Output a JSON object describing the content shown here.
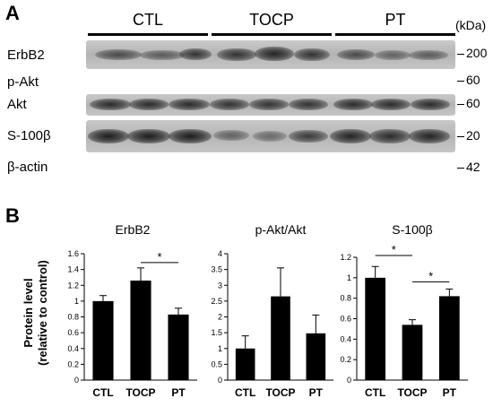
{
  "panels": {
    "a_label": "A",
    "b_label": "B"
  },
  "blot": {
    "groups": [
      "CTL",
      "TOCP",
      "PT"
    ],
    "unit_label": "(kDa)",
    "rows": [
      {
        "label": "ErbB2",
        "marker": "200"
      },
      {
        "label": "p-Akt",
        "marker": "60"
      },
      {
        "label": "Akt",
        "marker": "60"
      },
      {
        "label": "S-100β",
        "marker": "20"
      },
      {
        "label": "β-actin",
        "marker": "42"
      }
    ]
  },
  "y_axis_label_line1": "Protein level",
  "y_axis_label_line2": "(relative to control)",
  "chart_data": [
    {
      "type": "bar",
      "title": "ErbB2",
      "categories": [
        "CTL",
        "TOCP",
        "PT"
      ],
      "values": [
        1.0,
        1.26,
        0.83
      ],
      "errors": [
        0.07,
        0.16,
        0.08
      ],
      "ylim": [
        0,
        1.6
      ],
      "yticks": [
        "0",
        "0.2",
        "0.4",
        "0.6",
        "0.8",
        "1",
        "1.2",
        "1.4",
        "1.6"
      ],
      "significance": [
        {
          "from": 1,
          "to": 2,
          "label": "*"
        }
      ]
    },
    {
      "type": "bar",
      "title": "p-Akt/Akt",
      "categories": [
        "CTL",
        "TOCP",
        "PT"
      ],
      "values": [
        1.0,
        2.65,
        1.48
      ],
      "errors": [
        0.4,
        0.9,
        0.58
      ],
      "ylim": [
        0,
        4
      ],
      "yticks": [
        "0",
        "0.5",
        "1",
        "1.5",
        "2",
        "2.5",
        "3",
        "3.5",
        "4"
      ],
      "significance": []
    },
    {
      "type": "bar",
      "title": "S-100β",
      "categories": [
        "CTL",
        "TOCP",
        "PT"
      ],
      "values": [
        1.0,
        0.54,
        0.82
      ],
      "errors": [
        0.11,
        0.05,
        0.07
      ],
      "ylim": [
        0,
        1.2
      ],
      "yticks": [
        "0",
        "0.2",
        "0.4",
        "0.6",
        "0.8",
        "1",
        "1.2"
      ],
      "significance": [
        {
          "from": 0,
          "to": 1,
          "label": "*"
        },
        {
          "from": 1,
          "to": 2,
          "label": "*"
        }
      ]
    }
  ]
}
